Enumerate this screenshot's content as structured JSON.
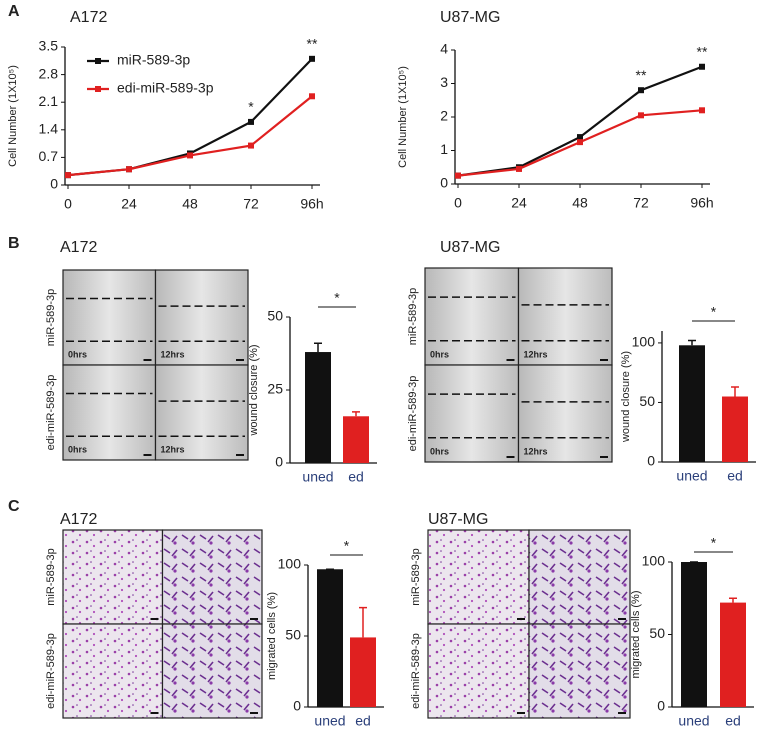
{
  "figure": {
    "panel_letters": [
      "A",
      "B",
      "C"
    ],
    "rows": [
      "miR-589-3p",
      "edi-miR-589-3p"
    ],
    "times": [
      "0hrs",
      "12hrs"
    ]
  },
  "chart_data": [
    {
      "type": "line",
      "title": "A172",
      "y_label": "Cell Number (1X10⁵)",
      "categories": [
        "0",
        "24",
        "48",
        "72",
        "96h"
      ],
      "series": [
        {
          "name": "miR-589-3p",
          "color": "#111111",
          "values": [
            0.25,
            0.4,
            0.8,
            1.6,
            3.2
          ]
        },
        {
          "name": "edi-miR-589-3p",
          "color": "#e02020",
          "values": [
            0.25,
            0.4,
            0.75,
            1.0,
            2.25
          ]
        }
      ],
      "ylim": [
        0,
        3.5
      ],
      "yticks": [
        0,
        0.7,
        1.4,
        2.1,
        2.8,
        3.5
      ],
      "legend": true,
      "annotations": [
        {
          "x": "72",
          "text": "*"
        },
        {
          "x": "96h",
          "text": "**"
        }
      ]
    },
    {
      "type": "line",
      "title": "U87-MG",
      "y_label": "Cell Number (1X10⁵)",
      "categories": [
        "0",
        "24",
        "48",
        "72",
        "96h"
      ],
      "series": [
        {
          "name": "miR-589-3p",
          "color": "#111111",
          "values": [
            0.25,
            0.5,
            1.4,
            2.8,
            3.5
          ]
        },
        {
          "name": "edi-miR-589-3p",
          "color": "#e02020",
          "values": [
            0.25,
            0.45,
            1.25,
            2.05,
            2.2
          ]
        }
      ],
      "ylim": [
        0,
        4
      ],
      "yticks": [
        0,
        1,
        2,
        3,
        4
      ],
      "legend": false,
      "annotations": [
        {
          "x": "72",
          "text": "**"
        },
        {
          "x": "96h",
          "text": "**"
        }
      ]
    },
    {
      "type": "bar",
      "title": "A172",
      "y_label": "wound closure (%)",
      "categories": [
        "uned",
        "ed"
      ],
      "values": [
        38,
        16
      ],
      "errors": [
        3,
        1.5
      ],
      "colors": [
        "#111111",
        "#e02020"
      ],
      "ylim": [
        0,
        50
      ],
      "yticks": [
        0,
        25,
        50
      ],
      "significance": "*"
    },
    {
      "type": "bar",
      "title": "U87-MG",
      "y_label": "wound closure (%)",
      "categories": [
        "uned",
        "ed"
      ],
      "values": [
        98,
        55
      ],
      "errors": [
        4,
        8
      ],
      "colors": [
        "#111111",
        "#e02020"
      ],
      "ylim": [
        0,
        110
      ],
      "yticks": [
        0,
        50,
        100
      ],
      "significance": "*"
    },
    {
      "type": "bar",
      "title": "A172",
      "y_label": "migrated cells (%)",
      "categories": [
        "uned",
        "ed"
      ],
      "values": [
        97,
        49
      ],
      "errors": [
        0,
        21
      ],
      "colors": [
        "#111111",
        "#e02020"
      ],
      "ylim": [
        0,
        100
      ],
      "yticks": [
        0,
        50,
        100
      ],
      "significance": "*"
    },
    {
      "type": "bar",
      "title": "U87-MG",
      "y_label": "migrated cells (%)",
      "categories": [
        "uned",
        "ed"
      ],
      "values": [
        100,
        72
      ],
      "errors": [
        0,
        3
      ],
      "colors": [
        "#111111",
        "#e02020"
      ],
      "ylim": [
        0,
        100
      ],
      "yticks": [
        0,
        50,
        100
      ],
      "significance": "*"
    }
  ]
}
